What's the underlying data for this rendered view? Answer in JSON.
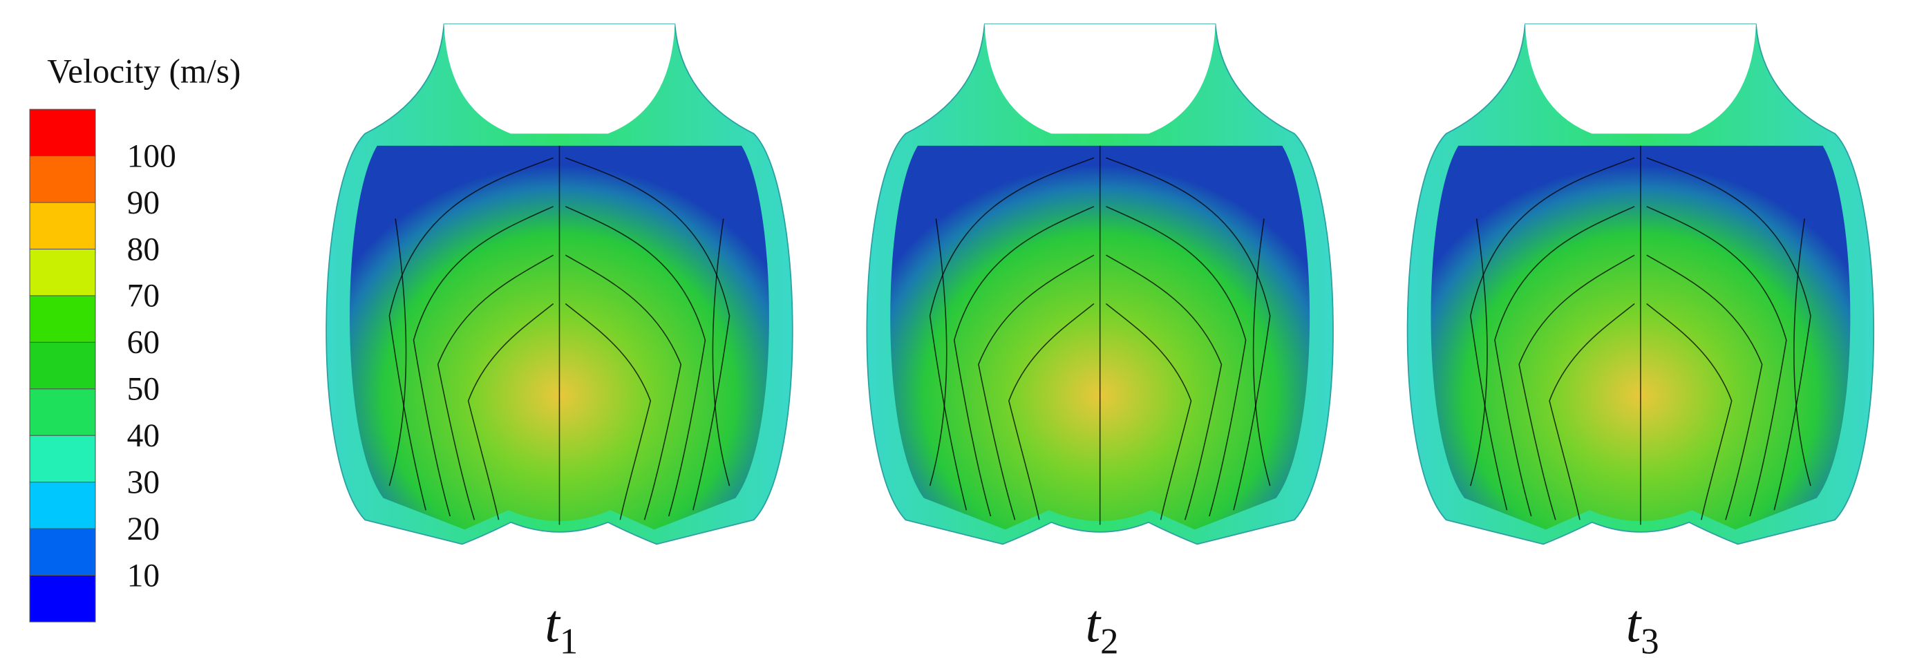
{
  "legend": {
    "title": "Velocity (m/s)",
    "labels": [
      100,
      90,
      80,
      70,
      60,
      50,
      40,
      30,
      20,
      10
    ],
    "colors": [
      "#ff0000",
      "#ff6a00",
      "#ffc400",
      "#c8f000",
      "#33e000",
      "#1ed21e",
      "#1ee05a",
      "#22f0b4",
      "#00c8ff",
      "#0064f0",
      "#0000ff"
    ]
  },
  "panels": [
    {
      "symbol": "t",
      "subscript": "1"
    },
    {
      "symbol": "t",
      "subscript": "2"
    },
    {
      "symbol": "t",
      "subscript": "3"
    }
  ]
}
